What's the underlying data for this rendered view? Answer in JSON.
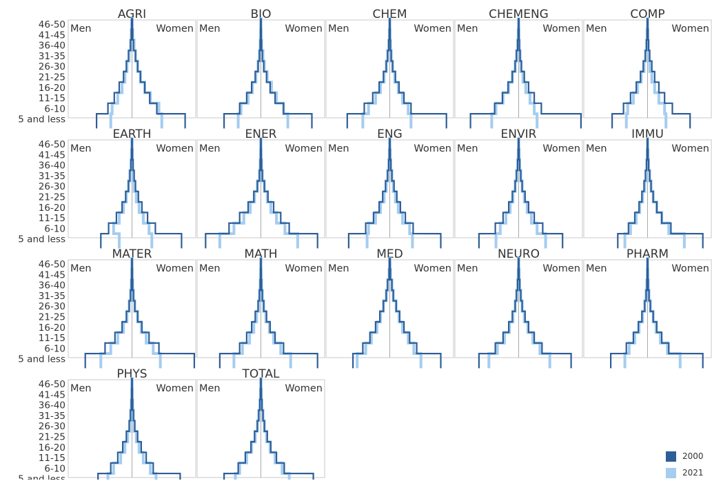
{
  "chart_data": {
    "type": "line",
    "panels": [
      {
        "title": "AGRI",
        "series": [
          {
            "name": "2000",
            "men": [
              50,
              34,
              25,
              18,
              12,
              8,
              5,
              2,
              1,
              0.5
            ],
            "women": [
              75,
              35,
              25,
              18,
              12,
              8,
              5,
              2,
              1,
              0.5
            ]
          },
          {
            "name": "2021",
            "men": [
              30,
              28,
              20,
              14,
              10,
              7,
              4,
              2,
              1,
              0.5
            ],
            "women": [
              42,
              38,
              26,
              18,
              12,
              8,
              5,
              3,
              1,
              0.5
            ]
          }
        ]
      },
      {
        "title": "BIO",
        "series": [
          {
            "name": "2000",
            "men": [
              52,
              30,
              20,
              13,
              8,
              4,
              2,
              1,
              0.5,
              0.3
            ],
            "women": [
              72,
              32,
              20,
              13,
              8,
              4,
              2,
              1,
              0.5,
              0.3
            ]
          },
          {
            "name": "2021",
            "men": [
              32,
              28,
              18,
              12,
              7,
              4,
              2,
              1,
              0.5,
              0.3
            ],
            "women": [
              38,
              32,
              22,
              15,
              9,
              5,
              3,
              1,
              0.5,
              0.3
            ]
          }
        ]
      },
      {
        "title": "CHEM",
        "series": [
          {
            "name": "2000",
            "men": [
              60,
              36,
              24,
              15,
              9,
              5,
              3,
              1.5,
              0.7,
              0.3
            ],
            "women": [
              80,
              30,
              20,
              13,
              8,
              4,
              2,
              1,
              0.5,
              0.3
            ]
          },
          {
            "name": "2021",
            "men": [
              38,
              30,
              20,
              13,
              8,
              5,
              3,
              1.5,
              0.7,
              0.3
            ],
            "women": [
              30,
              26,
              18,
              12,
              7,
              4,
              2,
              1,
              0.5,
              0.3
            ]
          }
        ]
      },
      {
        "title": "CHEMENG",
        "series": [
          {
            "name": "2000",
            "men": [
              68,
              34,
              23,
              15,
              9,
              5,
              3,
              1.5,
              0.7,
              0.3
            ],
            "women": [
              88,
              32,
              22,
              14,
              8,
              4,
              2,
              1,
              0.5,
              0.3
            ]
          },
          {
            "name": "2021",
            "men": [
              38,
              32,
              22,
              14,
              9,
              5,
              3,
              1.5,
              0.7,
              0.3
            ],
            "women": [
              26,
              22,
              16,
              10,
              6,
              3,
              2,
              1,
              0.5,
              0.3
            ]
          }
        ]
      },
      {
        "title": "COMP",
        "series": [
          {
            "name": "2000",
            "men": [
              50,
              34,
              24,
              16,
              10,
              6,
              3,
              1.5,
              0.7,
              0.3
            ],
            "women": [
              60,
              35,
              24,
              16,
              10,
              6,
              3,
              1.5,
              0.7,
              0.3
            ]
          },
          {
            "name": "2021",
            "men": [
              30,
              28,
              20,
              14,
              9,
              5,
              3,
              1.5,
              0.7,
              0.3
            ],
            "women": [
              26,
              24,
              16,
              10,
              6,
              3,
              2,
              1,
              0.5,
              0.3
            ]
          }
        ]
      },
      {
        "title": "EARTH",
        "series": [
          {
            "name": "2000",
            "men": [
              44,
              33,
              22,
              14,
              9,
              5,
              3,
              1.5,
              0.7,
              0.3
            ],
            "women": [
              70,
              33,
              22,
              14,
              9,
              5,
              3,
              1.5,
              0.7,
              0.3
            ]
          },
          {
            "name": "2021",
            "men": [
              18,
              26,
              18,
              12,
              8,
              5,
              3,
              1.5,
              0.7,
              0.3
            ],
            "women": [
              28,
              24,
              16,
              10,
              6,
              3,
              2,
              1,
              0.5,
              0.3
            ]
          }
        ]
      },
      {
        "title": "ENER",
        "series": [
          {
            "name": "2000",
            "men": [
              78,
              45,
              30,
              18,
              10,
              5,
              2,
              1,
              0.5,
              0.3
            ],
            "women": [
              80,
              40,
              28,
              18,
              10,
              5,
              2,
              1,
              0.5,
              0.3
            ]
          },
          {
            "name": "2021",
            "men": [
              58,
              38,
              24,
              15,
              9,
              5,
              2,
              1,
              0.5,
              0.3
            ],
            "women": [
              52,
              34,
              22,
              14,
              9,
              5,
              2,
              1,
              0.5,
              0.3
            ]
          }
        ]
      },
      {
        "title": "ENG",
        "series": [
          {
            "name": "2000",
            "men": [
              58,
              34,
              23,
              15,
              10,
              6,
              3,
              1.5,
              0.7,
              0.3
            ],
            "women": [
              72,
              33,
              22,
              15,
              10,
              6,
              3,
              1.5,
              0.7,
              0.3
            ]
          },
          {
            "name": "2021",
            "men": [
              32,
              30,
              20,
              13,
              8,
              5,
              3,
              1.5,
              0.7,
              0.3
            ],
            "women": [
              32,
              28,
              18,
              12,
              8,
              5,
              3,
              1.5,
              0.7,
              0.3
            ]
          }
        ]
      },
      {
        "title": "ENVIR",
        "series": [
          {
            "name": "2000",
            "men": [
              56,
              33,
              22,
              14,
              9,
              5,
              3,
              1.5,
              0.7,
              0.3
            ],
            "women": [
              62,
              34,
              22,
              14,
              9,
              5,
              3,
              1.5,
              0.7,
              0.3
            ]
          },
          {
            "name": "2021",
            "men": [
              32,
              26,
              18,
              12,
              8,
              5,
              3,
              1.5,
              0.7,
              0.3
            ],
            "women": [
              38,
              26,
              18,
              12,
              8,
              5,
              3,
              1.5,
              0.7,
              0.3
            ]
          }
        ]
      },
      {
        "title": "IMMU",
        "series": [
          {
            "name": "2000",
            "men": [
              42,
              27,
              18,
              12,
              8,
              5,
              3,
              1.5,
              0.7,
              0.3
            ],
            "women": [
              78,
              33,
              20,
              13,
              8,
              5,
              3,
              1.5,
              0.7,
              0.3
            ]
          },
          {
            "name": "2021",
            "men": [
              32,
              24,
              16,
              11,
              7,
              4,
              2,
              1,
              0.5,
              0.3
            ],
            "women": [
              52,
              30,
              20,
              13,
              8,
              5,
              3,
              1.5,
              0.7,
              0.3
            ]
          }
        ]
      },
      {
        "title": "MATER",
        "series": [
          {
            "name": "2000",
            "men": [
              66,
              38,
              24,
              14,
              8,
              4,
              2,
              1,
              0.5,
              0.3
            ],
            "women": [
              88,
              38,
              24,
              14,
              8,
              4,
              2,
              1,
              0.5,
              0.3
            ]
          },
          {
            "name": "2021",
            "men": [
              44,
              30,
              20,
              12,
              7,
              4,
              2,
              1,
              0.5,
              0.3
            ],
            "women": [
              40,
              30,
              20,
              13,
              8,
              4,
              2,
              1,
              0.5,
              0.3
            ]
          }
        ]
      },
      {
        "title": "MATH",
        "series": [
          {
            "name": "2000",
            "men": [
              58,
              30,
              20,
              13,
              8,
              4,
              2,
              1,
              0.5,
              0.3
            ],
            "women": [
              80,
              32,
              20,
              13,
              8,
              4,
              2,
              1,
              0.5,
              0.3
            ]
          },
          {
            "name": "2021",
            "men": [
              38,
              26,
              16,
              10,
              6,
              3,
              2,
              1,
              0.5,
              0.3
            ],
            "women": [
              42,
              28,
              18,
              12,
              7,
              4,
              2,
              1,
              0.5,
              0.3
            ]
          }
        ]
      },
      {
        "title": "MED",
        "series": [
          {
            "name": "2000",
            "men": [
              52,
              38,
              28,
              20,
              14,
              9,
              5,
              3,
              1,
              0.5
            ],
            "women": [
              72,
              38,
              28,
              20,
              14,
              9,
              5,
              3,
              1,
              0.5
            ]
          },
          {
            "name": "2021",
            "men": [
              46,
              34,
              26,
              18,
              13,
              9,
              5,
              3,
              1,
              0.5
            ],
            "women": [
              44,
              34,
              26,
              18,
              13,
              9,
              5,
              3,
              1,
              0.5
            ]
          }
        ]
      },
      {
        "title": "NEURO",
        "series": [
          {
            "name": "2000",
            "men": [
              56,
              33,
              22,
              14,
              9,
              5,
              3,
              1.5,
              0.7,
              0.3
            ],
            "women": [
              74,
              33,
              22,
              14,
              9,
              5,
              3,
              1.5,
              0.7,
              0.3
            ]
          },
          {
            "name": "2021",
            "men": [
              42,
              30,
              20,
              13,
              8,
              5,
              3,
              1.5,
              0.7,
              0.3
            ],
            "women": [
              44,
              30,
              20,
              13,
              8,
              5,
              3,
              1.5,
              0.7,
              0.3
            ]
          }
        ]
      },
      {
        "title": "PHARM",
        "series": [
          {
            "name": "2000",
            "men": [
              52,
              30,
              20,
              13,
              8,
              4,
              2,
              1,
              0.5,
              0.3
            ],
            "women": [
              78,
              30,
              20,
              13,
              8,
              4,
              2,
              1,
              0.5,
              0.3
            ]
          },
          {
            "name": "2021",
            "men": [
              32,
              26,
              18,
              12,
              7,
              4,
              2,
              1,
              0.5,
              0.3
            ],
            "women": [
              46,
              28,
              18,
              12,
              8,
              4,
              2,
              1,
              0.5,
              0.3
            ]
          }
        ]
      },
      {
        "title": "PHYS",
        "series": [
          {
            "name": "2000",
            "men": [
              48,
              30,
              20,
              13,
              8,
              4,
              2,
              1,
              0.5,
              0.3
            ],
            "women": [
              68,
              30,
              20,
              13,
              8,
              4,
              2,
              1,
              0.5,
              0.3
            ]
          },
          {
            "name": "2021",
            "men": [
              34,
              26,
              16,
              10,
              6,
              3,
              2,
              1,
              0.5,
              0.3
            ],
            "women": [
              34,
              26,
              16,
              10,
              6,
              3,
              2,
              1,
              0.5,
              0.3
            ]
          }
        ]
      },
      {
        "title": "TOTAL",
        "series": [
          {
            "name": "2000",
            "men": [
              52,
              32,
              22,
              14,
              9,
              5,
              3,
              1.5,
              0.7,
              0.3
            ],
            "women": [
              74,
              33,
              22,
              14,
              9,
              5,
              3,
              1.5,
              0.7,
              0.3
            ]
          },
          {
            "name": "2021",
            "men": [
              36,
              30,
              20,
              13,
              8,
              5,
              3,
              1.5,
              0.7,
              0.3
            ],
            "women": [
              40,
              30,
              20,
              13,
              8,
              5,
              3,
              1.5,
              0.7,
              0.3
            ]
          }
        ]
      }
    ],
    "age_groups": [
      "5 and less",
      "6-10",
      "11-15",
      "16-20",
      "21-25",
      "26-30",
      "31-35",
      "36-40",
      "41-45",
      "46-50"
    ],
    "left_label": "Men",
    "right_label": "Women",
    "x_range": [
      -90,
      90
    ],
    "legend": [
      {
        "label": "2000",
        "color": "#2e5e97"
      },
      {
        "label": "2021",
        "color": "#a4cdf0"
      }
    ],
    "grid": false
  }
}
